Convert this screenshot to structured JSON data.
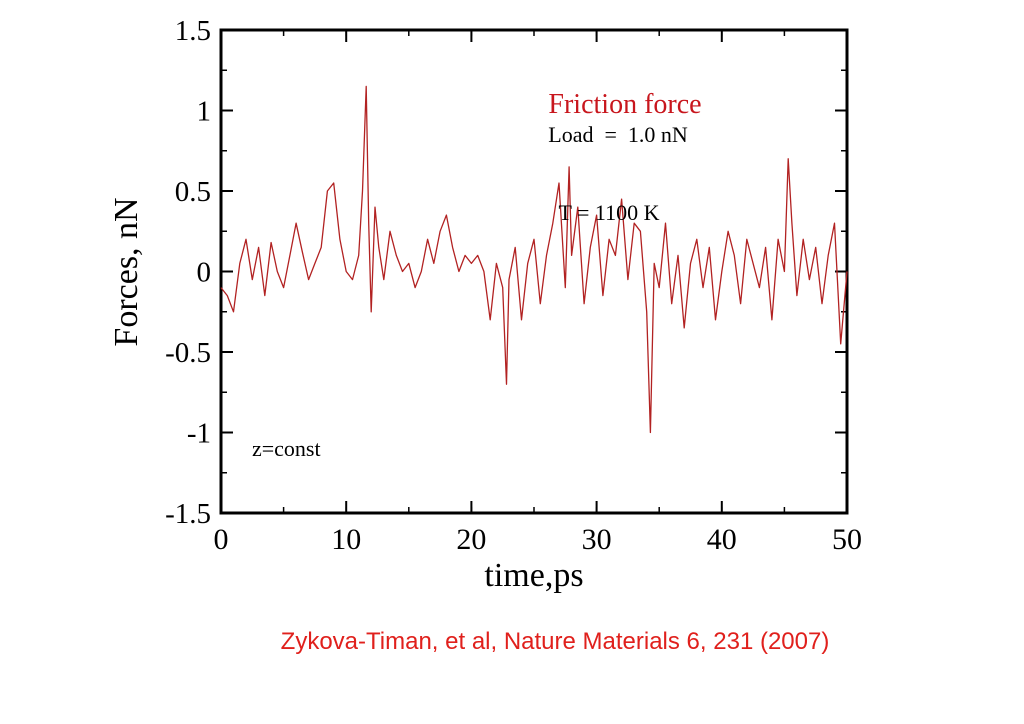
{
  "chart_data": {
    "type": "line",
    "title": "Friction force",
    "annotations": {
      "load": "Load  =  1.0 nN",
      "temperature": "T = 1100 K",
      "condition": "z=const"
    },
    "xlabel": "time,ps",
    "ylabel": "Forces, nN",
    "xlim": [
      0,
      50
    ],
    "ylim": [
      -1.5,
      1.5
    ],
    "x_ticks": [
      "0",
      "10",
      "20",
      "30",
      "40",
      "50"
    ],
    "y_ticks": [
      "1.5",
      "1",
      "0.5",
      "0",
      "-0.5",
      "-1",
      "-1.5"
    ],
    "grid": false,
    "legend": "none",
    "series": [
      {
        "color": "#b22222",
        "x": [
          0,
          0.5,
          1,
          1.5,
          2,
          2.5,
          3,
          3.5,
          4,
          4.5,
          5,
          5.5,
          6,
          6.5,
          7,
          7.5,
          8,
          8.5,
          9,
          9.5,
          10,
          10.5,
          11,
          11.3,
          11.6,
          11.8,
          12,
          12.3,
          12.6,
          13,
          13.5,
          14,
          14.5,
          15,
          15.5,
          16,
          16.5,
          17,
          17.5,
          18,
          18.5,
          19,
          19.5,
          20,
          20.5,
          21,
          21.5,
          22,
          22.5,
          22.8,
          23,
          23.5,
          24,
          24.5,
          25,
          25.5,
          26,
          26.5,
          27,
          27.5,
          27.8,
          28,
          28.5,
          29,
          29.5,
          30,
          30.5,
          31,
          31.5,
          32,
          32.5,
          33,
          33.5,
          34,
          34.3,
          34.6,
          35,
          35.5,
          36,
          36.5,
          37,
          37.5,
          38,
          38.5,
          39,
          39.5,
          40,
          40.5,
          41,
          41.5,
          42,
          42.5,
          43,
          43.5,
          44,
          44.5,
          45,
          45.3,
          45.6,
          46,
          46.5,
          47,
          47.5,
          48,
          48.5,
          49,
          49.5,
          50
        ],
        "y": [
          -0.1,
          -0.15,
          -0.25,
          0.05,
          0.2,
          -0.05,
          0.15,
          -0.15,
          0.18,
          0.0,
          -0.1,
          0.1,
          0.3,
          0.12,
          -0.05,
          0.05,
          0.15,
          0.5,
          0.55,
          0.2,
          0.0,
          -0.05,
          0.1,
          0.5,
          1.15,
          0.3,
          -0.25,
          0.4,
          0.15,
          -0.05,
          0.25,
          0.1,
          0.0,
          0.05,
          -0.1,
          0.0,
          0.2,
          0.05,
          0.25,
          0.35,
          0.15,
          0.0,
          0.1,
          0.05,
          0.1,
          0.0,
          -0.3,
          0.05,
          -0.1,
          -0.7,
          -0.05,
          0.15,
          -0.3,
          0.05,
          0.2,
          -0.2,
          0.1,
          0.3,
          0.55,
          -0.1,
          0.65,
          0.1,
          0.4,
          -0.2,
          0.15,
          0.35,
          -0.15,
          0.2,
          0.1,
          0.45,
          -0.05,
          0.3,
          0.25,
          -0.25,
          -1.0,
          0.05,
          -0.1,
          0.3,
          -0.2,
          0.1,
          -0.35,
          0.05,
          0.2,
          -0.1,
          0.15,
          -0.3,
          0.0,
          0.25,
          0.1,
          -0.2,
          0.2,
          0.05,
          -0.1,
          0.15,
          -0.3,
          0.2,
          0.0,
          0.7,
          0.3,
          -0.15,
          0.2,
          -0.05,
          0.15,
          -0.2,
          0.1,
          0.3,
          -0.45,
          0.0
        ]
      }
    ]
  },
  "citation": "Zykova-Timan, et al, Nature Materials 6, 231 (2007)"
}
